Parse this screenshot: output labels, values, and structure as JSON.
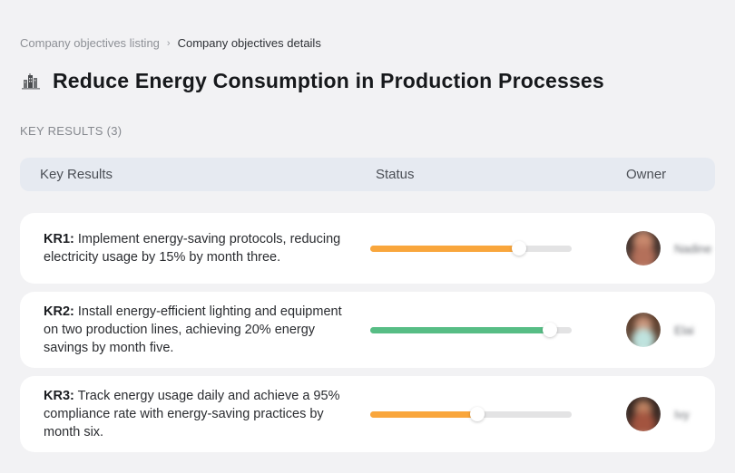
{
  "breadcrumb": {
    "items": [
      {
        "label": "Company objectives listing"
      },
      {
        "label": "Company objectives details"
      }
    ],
    "separator": "›"
  },
  "header": {
    "icon": "buildings-icon",
    "title": "Reduce Energy Consumption in Production Processes"
  },
  "section": {
    "label": "KEY RESULTS (3)"
  },
  "table": {
    "columns": {
      "key_results": "Key Results",
      "status": "Status",
      "owner": "Owner"
    },
    "rows": [
      {
        "kr_label": "KR1:",
        "description": "Implement energy-saving protocols, reducing electricity usage by 15% by month three.",
        "progress_percent": 74,
        "progress_color": "#F9A63C",
        "owner": "Nadine"
      },
      {
        "kr_label": "KR2:",
        "description": "Install energy-efficient lighting and equipment on two production lines, achieving 20% energy savings by month five.",
        "progress_percent": 89,
        "progress_color": "#57BD85",
        "owner": "Elai"
      },
      {
        "kr_label": "KR3:",
        "description": "Track energy usage daily and achieve a 95% compliance rate with energy-saving practices by month six.",
        "progress_percent": 53,
        "progress_color": "#F9A63C",
        "owner": "Ivy"
      }
    ]
  },
  "colors": {
    "page_background": "#F2F2F4",
    "card_background": "#FFFFFF",
    "table_header_background": "#E6EAF1",
    "progress_track": "#E3E3E4",
    "progress_orange": "#F9A63C",
    "progress_green": "#57BD85"
  }
}
